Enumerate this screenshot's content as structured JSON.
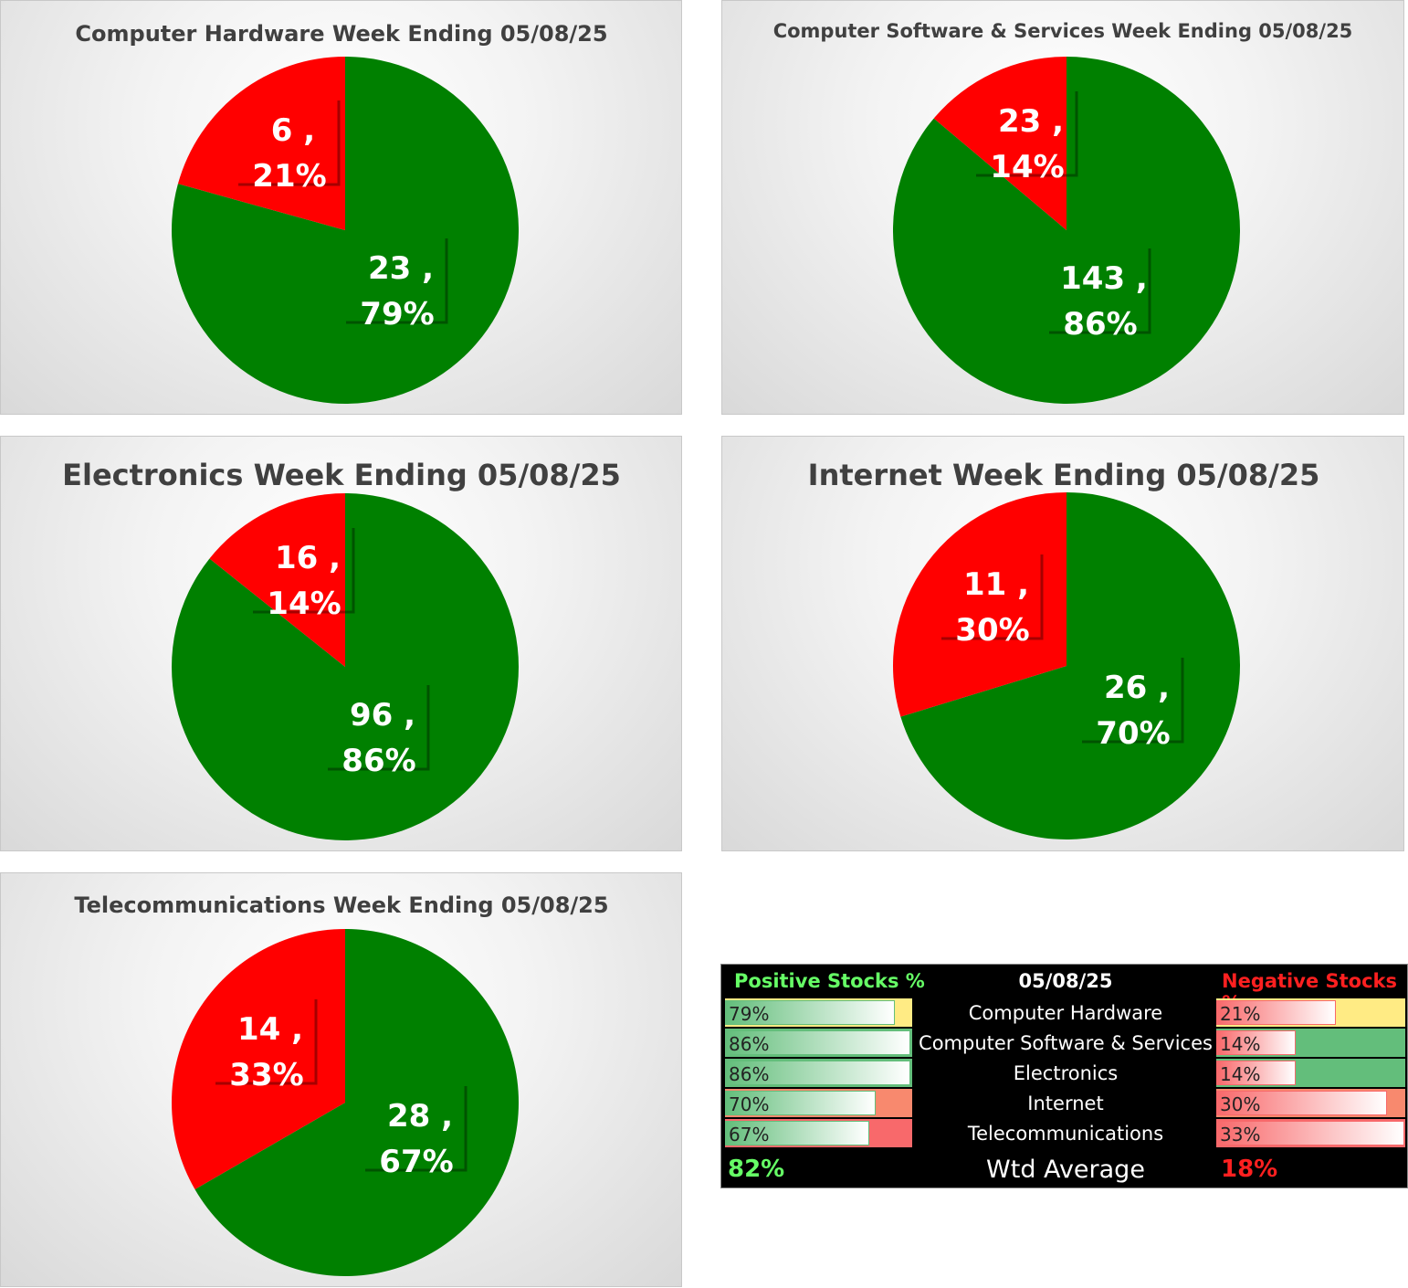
{
  "colors": {
    "positive": "#008000",
    "negative": "#ff0000",
    "pos_text": "#66ff66",
    "neg_text": "#ff2020"
  },
  "chart_data": [
    {
      "type": "pie",
      "title": "Computer Hardware Week Ending 05/08/25",
      "series": [
        {
          "name": "Positive",
          "value": 23,
          "percent": "79%",
          "label": "23 ,",
          "pct_label": "79%"
        },
        {
          "name": "Negative",
          "value": 6,
          "percent": "21%",
          "label": "6 ,",
          "pct_label": "21%"
        }
      ]
    },
    {
      "type": "pie",
      "title": "Computer Software & Services Week Ending 05/08/25",
      "series": [
        {
          "name": "Positive",
          "value": 143,
          "percent": "86%",
          "label": "143 ,",
          "pct_label": "86%"
        },
        {
          "name": "Negative",
          "value": 23,
          "percent": "14%",
          "label": "23 ,",
          "pct_label": "14%"
        }
      ]
    },
    {
      "type": "pie",
      "title": "Electronics Week Ending 05/08/25",
      "series": [
        {
          "name": "Positive",
          "value": 96,
          "percent": "86%",
          "label": "96 ,",
          "pct_label": "86%"
        },
        {
          "name": "Negative",
          "value": 16,
          "percent": "14%",
          "label": "16 ,",
          "pct_label": "14%"
        }
      ]
    },
    {
      "type": "pie",
      "title": "Internet Week Ending 05/08/25",
      "series": [
        {
          "name": "Positive",
          "value": 26,
          "percent": "70%",
          "label": "26 ,",
          "pct_label": "70%"
        },
        {
          "name": "Negative",
          "value": 11,
          "percent": "30%",
          "label": "11 ,",
          "pct_label": "30%"
        }
      ]
    },
    {
      "type": "pie",
      "title": "Telecommunications Week Ending 05/08/25",
      "series": [
        {
          "name": "Positive",
          "value": 28,
          "percent": "67%",
          "label": "28 ,",
          "pct_label": "67%"
        },
        {
          "name": "Negative",
          "value": 14,
          "percent": "33%",
          "label": "14 ,",
          "pct_label": "33%"
        }
      ]
    }
  ],
  "summary": {
    "positive_header": "Positive Stocks %",
    "date_header": "05/08/25",
    "negative_header": "Negative Stocks %",
    "rows": [
      {
        "category": "Computer Hardware",
        "pos": "79%",
        "pos_value": 0.79,
        "neg": "21%",
        "neg_value": 0.21,
        "pos_fill": "#ffeb84",
        "neg_fill": "#ffeb84"
      },
      {
        "category": "Computer Software & Services",
        "pos": "86%",
        "pos_value": 0.86,
        "neg": "14%",
        "neg_value": 0.14,
        "pos_fill": "#63be7b",
        "neg_fill": "#63be7b"
      },
      {
        "category": "Electronics",
        "pos": "86%",
        "pos_value": 0.86,
        "neg": "14%",
        "neg_value": 0.14,
        "pos_fill": "#63be7b",
        "neg_fill": "#63be7b"
      },
      {
        "category": "Internet",
        "pos": "70%",
        "pos_value": 0.7,
        "neg": "30%",
        "neg_value": 0.3,
        "pos_fill": "#f8896e",
        "neg_fill": "#f8896e"
      },
      {
        "category": "Telecommunications",
        "pos": "67%",
        "pos_value": 0.67,
        "neg": "33%",
        "neg_value": 0.33,
        "pos_fill": "#f8696b",
        "neg_fill": "#f8696b"
      }
    ],
    "wtd_label": "Wtd Average",
    "wtd_pos": "82%",
    "wtd_neg": "18%"
  }
}
